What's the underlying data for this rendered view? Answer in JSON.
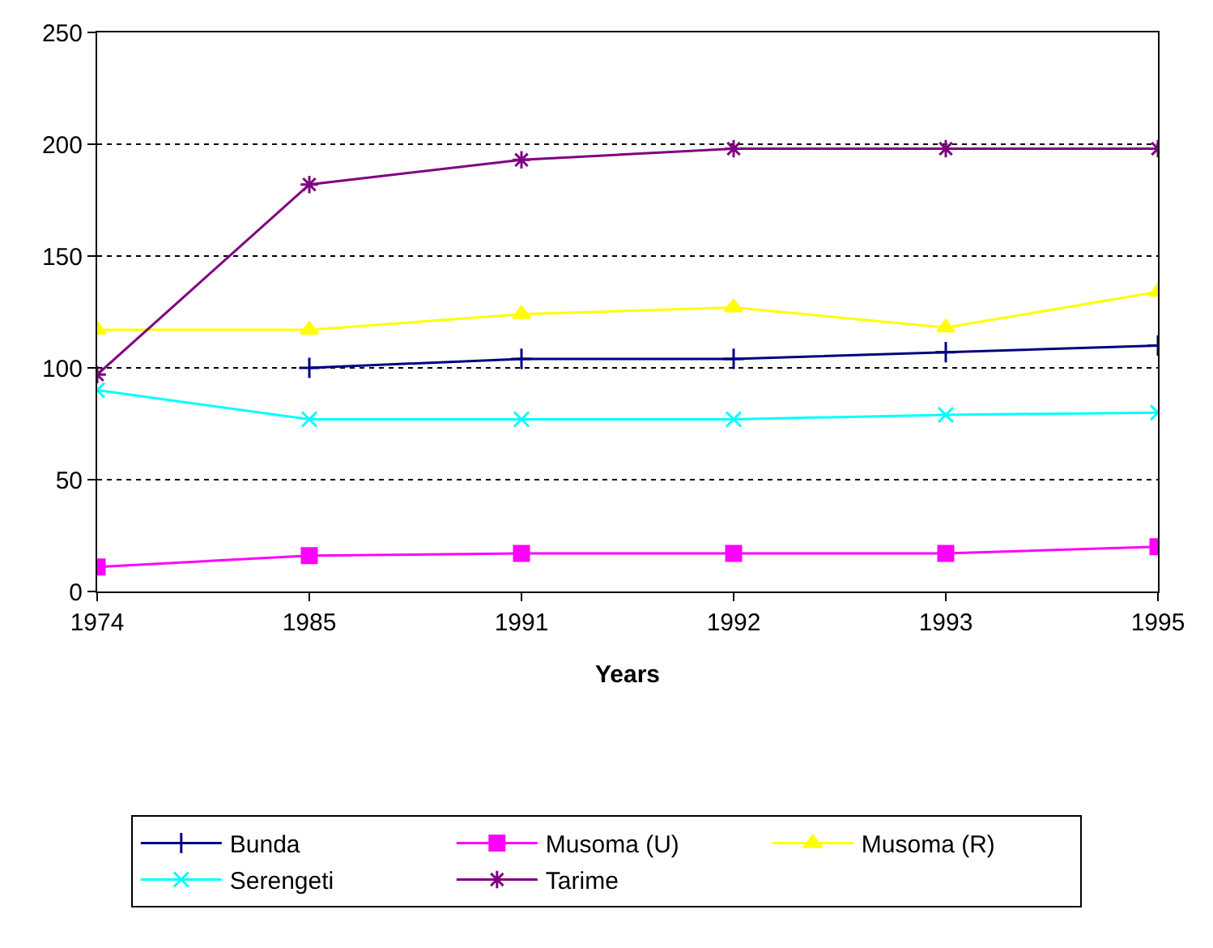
{
  "chart_data": {
    "type": "line",
    "xlabel": "Years",
    "categories": [
      "1974",
      "1985",
      "1991",
      "1992",
      "1993",
      "1995"
    ],
    "ylim": [
      0,
      250
    ],
    "yticks": [
      0,
      50,
      100,
      150,
      200,
      250
    ],
    "grid": "y",
    "legend": "bottom",
    "series": [
      {
        "name": "Bunda",
        "color": "#000080",
        "marker": "cross",
        "values": [
          null,
          100,
          104,
          104,
          107,
          110
        ]
      },
      {
        "name": "Musoma (U)",
        "color": "#ff00ff",
        "marker": "square",
        "values": [
          11,
          16,
          17,
          17,
          17,
          20
        ]
      },
      {
        "name": "Musoma (R)",
        "color": "#ffff00",
        "marker": "triangle",
        "values": [
          117,
          117,
          124,
          127,
          118,
          134
        ]
      },
      {
        "name": "Serengeti",
        "color": "#00ffff",
        "marker": "cross",
        "values": [
          90,
          77,
          77,
          77,
          79,
          80
        ]
      },
      {
        "name": "Tarime",
        "color": "#800080",
        "marker": "cross",
        "values": [
          97,
          182,
          193,
          198,
          198,
          198
        ]
      }
    ]
  }
}
